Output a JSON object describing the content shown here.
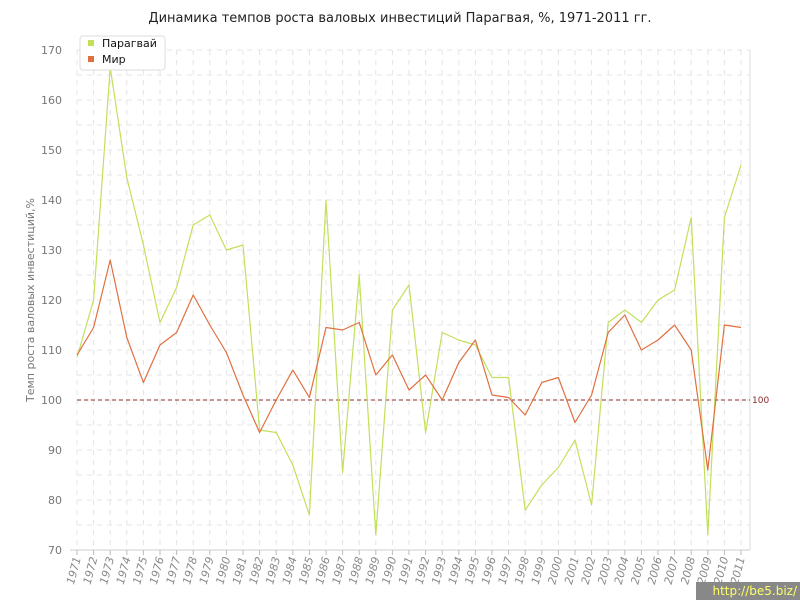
{
  "chart_data": {
    "type": "line",
    "title": "Динамика темпов роста валовых инвестиций Парагвая, %, 1971-2011 гг.",
    "ylabel": "Темп роста валовых инвестиций,%",
    "xlabel": "",
    "ylim": [
      70,
      170
    ],
    "yticks": [
      70,
      80,
      90,
      100,
      110,
      120,
      130,
      140,
      150,
      160,
      170
    ],
    "grid": true,
    "legend_position": "top-left",
    "x": [
      "1971",
      "1972",
      "1973",
      "1974",
      "1975",
      "1976",
      "1977",
      "1978",
      "1979",
      "1980",
      "1981",
      "1982",
      "1983",
      "1984",
      "1985",
      "1986",
      "1987",
      "1988",
      "1989",
      "1990",
      "1991",
      "1992",
      "1993",
      "1994",
      "1995",
      "1996",
      "1997",
      "1998",
      "1999",
      "2000",
      "2001",
      "2002",
      "2003",
      "2004",
      "2005",
      "2006",
      "2007",
      "2008",
      "2009",
      "2010",
      "2011"
    ],
    "series": [
      {
        "name": "Парагвай",
        "color": "#c2e05a",
        "values": [
          108.5,
          120,
          166.5,
          144.5,
          131,
          115.5,
          122.5,
          135,
          137,
          130,
          131,
          94,
          93.5,
          87,
          77,
          140,
          85.5,
          125,
          73,
          118,
          123,
          93.5,
          113.5,
          112,
          111,
          104.5,
          104.5,
          78,
          83,
          86.5,
          92,
          79,
          115.5,
          118,
          115.5,
          120,
          122,
          136.5,
          73,
          136.5,
          147
        ]
      },
      {
        "name": "Мир",
        "color": "#e07040",
        "values": [
          109,
          114.5,
          128,
          112.5,
          103.5,
          111,
          113.5,
          121,
          115,
          109.5,
          101,
          93.5,
          100,
          106,
          100.5,
          114.5,
          114,
          115.5,
          105,
          109,
          102,
          105,
          100,
          107.5,
          112,
          101,
          100.5,
          97,
          103.5,
          104.5,
          95.5,
          101,
          113.5,
          117,
          110,
          112,
          115,
          110,
          86,
          115,
          114.5
        ]
      }
    ],
    "reference_line": {
      "value": 100,
      "label": "100",
      "color": "#8b2a2a"
    }
  },
  "watermark": "http://be5.biz/"
}
